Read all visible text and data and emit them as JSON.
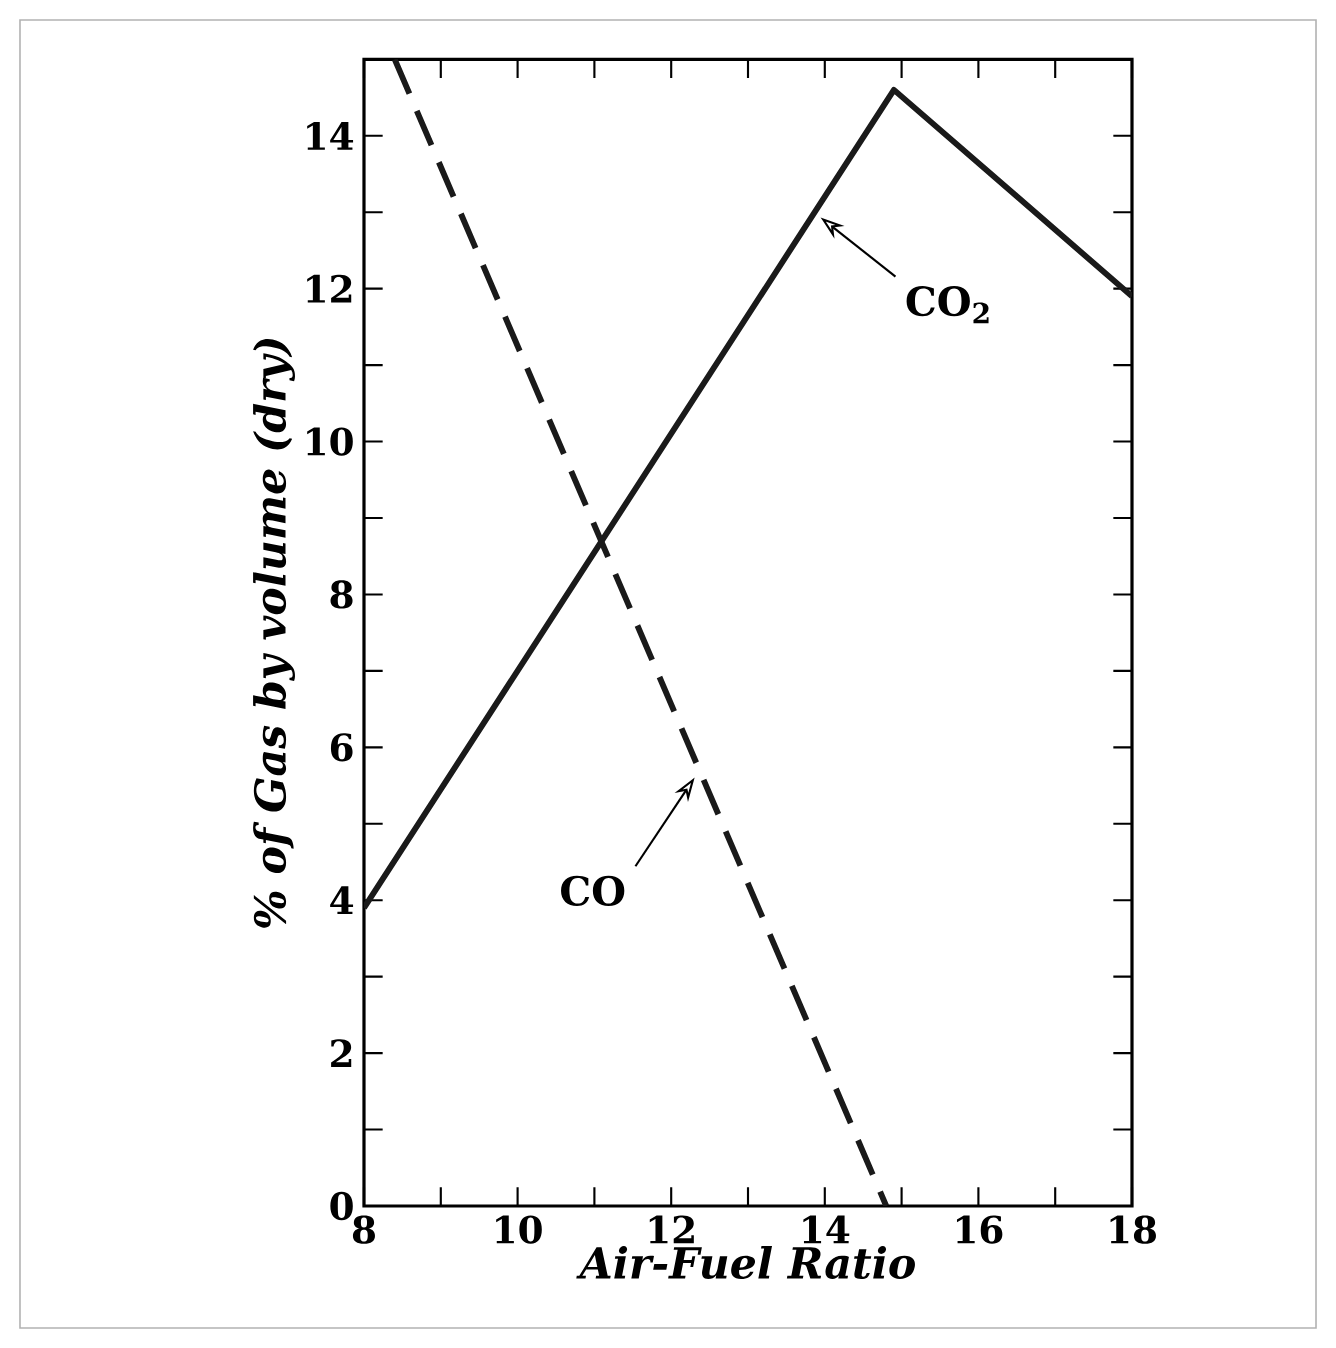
{
  "chart_data": {
    "type": "line",
    "xlabel": "Air-Fuel Ratio",
    "ylabel": "% of Gas by volume (dry)",
    "series": [
      {
        "name": "CO$_{2}$",
        "color": "#1a1a1a",
        "x": [
          8,
          14.9,
          18
        ],
        "values": [
          3.9,
          14.6,
          11.9
        ],
        "line_style": "solid"
      },
      {
        "name": "CO",
        "color": "#1a1a1a",
        "x": [
          8.4,
          14.8
        ],
        "values": [
          15,
          0
        ],
        "line_style": "dashed"
      }
    ],
    "xlim": [
      8,
      18
    ],
    "ylim": [
      0,
      15
    ],
    "xticks": [
      8,
      {
        "value": 9,
        "label": null
      },
      10,
      {
        "value": 11,
        "label": null
      },
      12,
      {
        "value": 13,
        "label": null
      },
      14,
      {
        "value": 15,
        "label": null
      },
      16,
      {
        "value": 17,
        "label": null
      },
      18
    ],
    "yticks": [
      0,
      {
        "value": 1,
        "label": null
      },
      2,
      {
        "value": 3,
        "label": null
      },
      4,
      {
        "value": 5,
        "label": null
      },
      6,
      {
        "value": 7,
        "label": null
      },
      8,
      {
        "value": 9,
        "label": null
      },
      10,
      {
        "value": 11,
        "label": null
      },
      12,
      {
        "value": 13,
        "label": null
      },
      14
    ],
    "grid": false,
    "legend": false,
    "marker": "none"
  }
}
